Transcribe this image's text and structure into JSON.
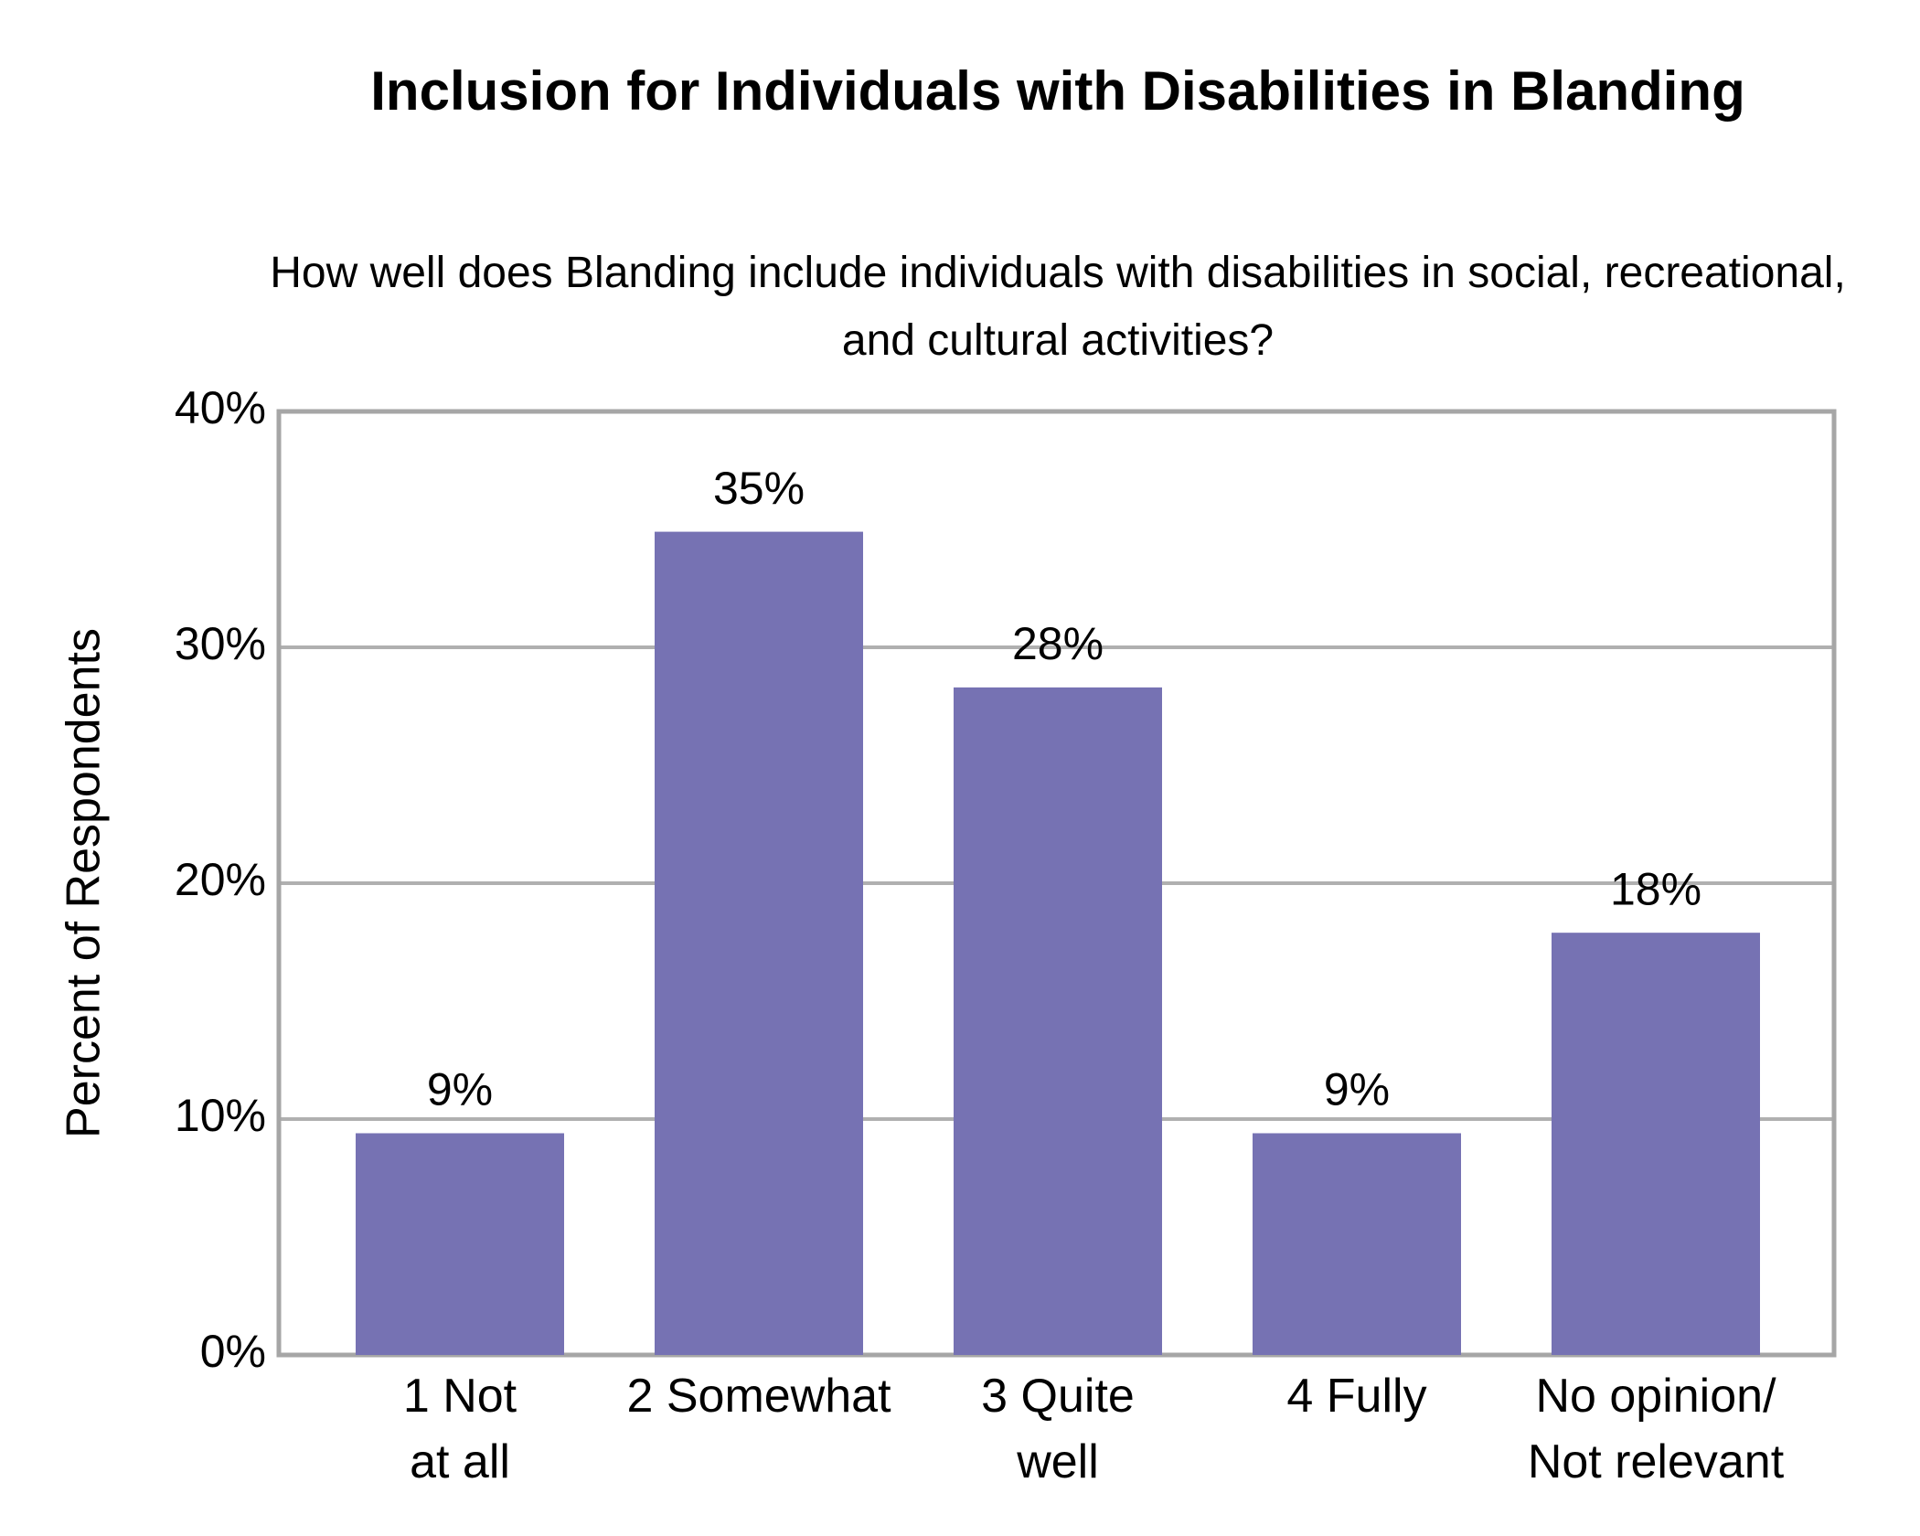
{
  "chart_data": {
    "type": "bar",
    "title": "Inclusion for Individuals with Disabilities in Blanding",
    "subtitle": "How well does Blanding include individuals with disabilities in social, recreational, and cultural activities?",
    "y_label": "Percent of Respondents",
    "categories": [
      "1 Not\nat all",
      "2 Somewhat",
      "3 Quite\nwell",
      "4 Fully",
      "No opinion/\nNot relevant"
    ],
    "values": [
      9.4,
      34.9,
      28.3,
      9.4,
      17.9
    ],
    "value_labels": [
      "9%",
      "35%",
      "28%",
      "9%",
      "18%"
    ],
    "color": "#7672b3",
    "ylim": [
      0,
      40
    ],
    "yticks": [
      {
        "value": 0,
        "label": "0%"
      },
      {
        "value": 10,
        "label": "10%"
      },
      {
        "value": 20,
        "label": "20%"
      },
      {
        "value": 30,
        "label": "30%"
      },
      {
        "value": 40,
        "label": "40%"
      }
    ],
    "grid": true
  }
}
